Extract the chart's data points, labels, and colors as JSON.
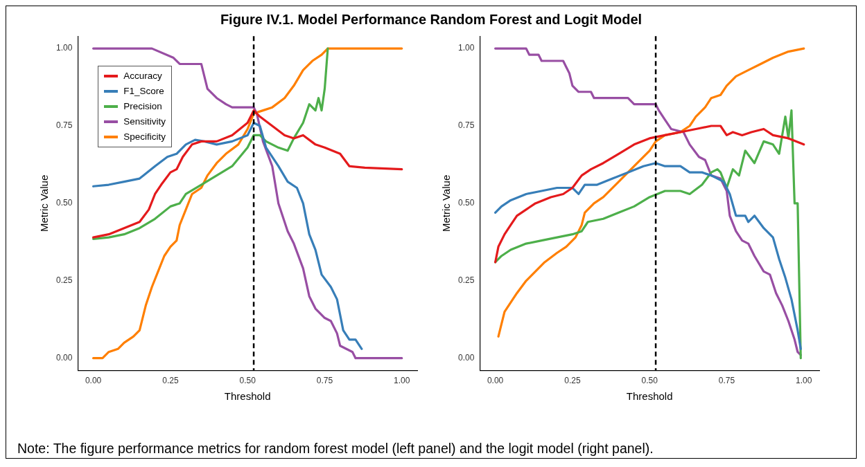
{
  "chart_data": [
    {
      "type": "line",
      "title": "Figure IV.1. Model Performance Random Forest and Logit Model",
      "xlabel": "Threshold",
      "ylabel": "Metric Value",
      "xlim": [
        -0.05,
        1.05
      ],
      "ylim": [
        -0.04,
        1.04
      ],
      "xticks": [
        {
          "value": 0,
          "label": "0.00"
        },
        {
          "value": 0.25,
          "label": "0.25"
        },
        {
          "value": 0.5,
          "label": "0.50"
        },
        {
          "value": 0.75,
          "label": "0.75"
        },
        {
          "value": 1,
          "label": "1.00"
        }
      ],
      "yticks": [
        {
          "value": 0,
          "label": "0.00"
        },
        {
          "value": 0.25,
          "label": "0.25"
        },
        {
          "value": 0.5,
          "label": "0.50"
        },
        {
          "value": 0.75,
          "label": "0.75"
        },
        {
          "value": 1,
          "label": "1.00"
        }
      ],
      "grid": false,
      "legend": "top left",
      "line_style": "solid",
      "marker": "none",
      "ref_lines": [
        {
          "axis": "x",
          "value": 0.52,
          "color": "#000000",
          "line_style": "dashed"
        }
      ],
      "series": [
        {
          "name": "Accuracy",
          "color": "#e41a1c",
          "x": [
            0,
            0.05,
            0.1,
            0.15,
            0.18,
            0.2,
            0.22,
            0.25,
            0.27,
            0.29,
            0.32,
            0.35,
            0.4,
            0.45,
            0.5,
            0.52,
            0.54,
            0.58,
            0.62,
            0.65,
            0.68,
            0.72,
            0.75,
            0.8,
            0.83,
            0.88,
            1
          ],
          "values": [
            0.39,
            0.4,
            0.42,
            0.44,
            0.48,
            0.53,
            0.56,
            0.6,
            0.61,
            0.65,
            0.69,
            0.7,
            0.7,
            0.72,
            0.76,
            0.8,
            0.78,
            0.75,
            0.72,
            0.71,
            0.72,
            0.69,
            0.68,
            0.66,
            0.62,
            0.615,
            0.61
          ]
        },
        {
          "name": "F1_Score",
          "color": "#377eb8",
          "x": [
            0,
            0.05,
            0.1,
            0.15,
            0.2,
            0.24,
            0.27,
            0.3,
            0.33,
            0.36,
            0.4,
            0.45,
            0.5,
            0.52,
            0.54,
            0.56,
            0.6,
            0.63,
            0.66,
            0.68,
            0.7,
            0.72,
            0.74,
            0.77,
            0.79,
            0.81,
            0.83,
            0.85,
            0.87
          ],
          "values": [
            0.555,
            0.56,
            0.57,
            0.58,
            0.62,
            0.65,
            0.66,
            0.69,
            0.705,
            0.7,
            0.69,
            0.7,
            0.72,
            0.76,
            0.75,
            0.68,
            0.62,
            0.57,
            0.55,
            0.5,
            0.4,
            0.35,
            0.27,
            0.23,
            0.19,
            0.09,
            0.06,
            0.06,
            0.03
          ]
        },
        {
          "name": "Precision",
          "color": "#4daf4a",
          "x": [
            0,
            0.05,
            0.1,
            0.15,
            0.2,
            0.25,
            0.28,
            0.3,
            0.35,
            0.4,
            0.45,
            0.5,
            0.52,
            0.54,
            0.56,
            0.6,
            0.63,
            0.65,
            0.68,
            0.7,
            0.72,
            0.73,
            0.74,
            0.75,
            0.76
          ],
          "values": [
            0.385,
            0.39,
            0.4,
            0.42,
            0.45,
            0.49,
            0.5,
            0.53,
            0.56,
            0.59,
            0.62,
            0.68,
            0.72,
            0.72,
            0.7,
            0.68,
            0.67,
            0.71,
            0.76,
            0.82,
            0.8,
            0.84,
            0.8,
            0.87,
            1
          ]
        },
        {
          "name": "Sensitivity",
          "color": "#984ea3",
          "x": [
            0,
            0.1,
            0.19,
            0.26,
            0.28,
            0.35,
            0.37,
            0.4,
            0.43,
            0.45,
            0.52,
            0.53,
            0.55,
            0.58,
            0.6,
            0.63,
            0.65,
            0.68,
            0.7,
            0.72,
            0.75,
            0.77,
            0.79,
            0.8,
            0.82,
            0.84,
            0.85,
            1
          ],
          "values": [
            1,
            1,
            1,
            0.97,
            0.95,
            0.95,
            0.87,
            0.84,
            0.82,
            0.81,
            0.81,
            0.79,
            0.7,
            0.62,
            0.5,
            0.41,
            0.37,
            0.29,
            0.2,
            0.16,
            0.13,
            0.12,
            0.08,
            0.04,
            0.03,
            0.02,
            0,
            0
          ]
        },
        {
          "name": "Specificity",
          "color": "#ff7f00",
          "x": [
            0,
            0.03,
            0.05,
            0.08,
            0.1,
            0.13,
            0.15,
            0.17,
            0.19,
            0.21,
            0.23,
            0.25,
            0.27,
            0.28,
            0.3,
            0.32,
            0.35,
            0.37,
            0.4,
            0.43,
            0.47,
            0.5,
            0.52,
            0.55,
            0.58,
            0.62,
            0.65,
            0.68,
            0.71,
            0.74,
            0.76,
            1
          ],
          "values": [
            0,
            0,
            0.02,
            0.03,
            0.05,
            0.07,
            0.09,
            0.17,
            0.23,
            0.28,
            0.33,
            0.36,
            0.38,
            0.43,
            0.48,
            0.53,
            0.55,
            0.59,
            0.63,
            0.66,
            0.69,
            0.74,
            0.79,
            0.8,
            0.81,
            0.84,
            0.88,
            0.93,
            0.96,
            0.98,
            1,
            1
          ]
        }
      ],
      "annotations": [
        "Note: The figure performance metrics for random forest model (left panel) and the logit model (right panel)."
      ]
    },
    {
      "type": "line",
      "xlabel": "Threshold",
      "ylabel": "Metric Value",
      "xlim": [
        -0.05,
        1.05
      ],
      "ylim": [
        -0.04,
        1.04
      ],
      "xticks": [
        {
          "value": 0,
          "label": "0.00"
        },
        {
          "value": 0.25,
          "label": "0.25"
        },
        {
          "value": 0.5,
          "label": "0.50"
        },
        {
          "value": 0.75,
          "label": "0.75"
        },
        {
          "value": 1,
          "label": "1.00"
        }
      ],
      "yticks": [
        {
          "value": 0,
          "label": "0.00"
        },
        {
          "value": 0.25,
          "label": "0.25"
        },
        {
          "value": 0.5,
          "label": "0.50"
        },
        {
          "value": 0.75,
          "label": "0.75"
        },
        {
          "value": 1,
          "label": "1.00"
        }
      ],
      "grid": false,
      "line_style": "solid",
      "marker": "none",
      "ref_lines": [
        {
          "axis": "x",
          "value": 0.52,
          "color": "#000000",
          "line_style": "dashed"
        }
      ],
      "series": [
        {
          "color": "#e41a1c",
          "x": [
            0,
            0.01,
            0.03,
            0.05,
            0.07,
            0.1,
            0.13,
            0.18,
            0.22,
            0.25,
            0.28,
            0.31,
            0.35,
            0.4,
            0.45,
            0.5,
            0.55,
            0.6,
            0.65,
            0.7,
            0.73,
            0.75,
            0.77,
            0.8,
            0.83,
            0.87,
            0.9,
            0.95,
            1
          ],
          "values": [
            0.31,
            0.36,
            0.4,
            0.43,
            0.46,
            0.48,
            0.5,
            0.52,
            0.53,
            0.55,
            0.59,
            0.61,
            0.63,
            0.66,
            0.69,
            0.71,
            0.72,
            0.73,
            0.74,
            0.75,
            0.75,
            0.72,
            0.73,
            0.72,
            0.73,
            0.74,
            0.72,
            0.71,
            0.69
          ]
        },
        {
          "color": "#377eb8",
          "x": [
            0,
            0.02,
            0.05,
            0.1,
            0.15,
            0.2,
            0.25,
            0.27,
            0.29,
            0.33,
            0.38,
            0.43,
            0.48,
            0.52,
            0.55,
            0.6,
            0.63,
            0.67,
            0.7,
            0.74,
            0.76,
            0.78,
            0.81,
            0.82,
            0.84,
            0.87,
            0.9,
            0.92,
            0.94,
            0.96,
            0.98,
            0.99
          ],
          "values": [
            0.47,
            0.49,
            0.51,
            0.53,
            0.54,
            0.55,
            0.55,
            0.53,
            0.56,
            0.56,
            0.58,
            0.6,
            0.62,
            0.63,
            0.62,
            0.62,
            0.6,
            0.6,
            0.59,
            0.57,
            0.53,
            0.46,
            0.46,
            0.44,
            0.46,
            0.42,
            0.39,
            0.32,
            0.26,
            0.19,
            0.09,
            0.03
          ]
        },
        {
          "color": "#4daf4a",
          "x": [
            0,
            0.02,
            0.05,
            0.1,
            0.15,
            0.2,
            0.25,
            0.28,
            0.3,
            0.35,
            0.4,
            0.45,
            0.5,
            0.55,
            0.6,
            0.63,
            0.67,
            0.7,
            0.72,
            0.73,
            0.75,
            0.77,
            0.79,
            0.81,
            0.84,
            0.87,
            0.9,
            0.92,
            0.94,
            0.95,
            0.96,
            0.97,
            0.98,
            0.99
          ],
          "values": [
            0.31,
            0.33,
            0.35,
            0.37,
            0.38,
            0.39,
            0.4,
            0.41,
            0.44,
            0.45,
            0.47,
            0.49,
            0.52,
            0.54,
            0.54,
            0.53,
            0.56,
            0.6,
            0.61,
            0.6,
            0.55,
            0.61,
            0.59,
            0.67,
            0.63,
            0.7,
            0.69,
            0.66,
            0.78,
            0.71,
            0.8,
            0.5,
            0.5,
            0
          ]
        },
        {
          "color": "#984ea3",
          "x": [
            0,
            0.1,
            0.11,
            0.14,
            0.15,
            0.22,
            0.23,
            0.24,
            0.25,
            0.27,
            0.31,
            0.32,
            0.43,
            0.45,
            0.52,
            0.53,
            0.55,
            0.57,
            0.61,
            0.63,
            0.66,
            0.68,
            0.7,
            0.73,
            0.75,
            0.76,
            0.78,
            0.8,
            0.82,
            0.84,
            0.87,
            0.89,
            0.91,
            0.93,
            0.95,
            0.97,
            0.98,
            0.99
          ],
          "values": [
            1,
            1,
            0.98,
            0.98,
            0.96,
            0.96,
            0.94,
            0.92,
            0.88,
            0.86,
            0.86,
            0.84,
            0.84,
            0.82,
            0.82,
            0.8,
            0.77,
            0.74,
            0.73,
            0.69,
            0.65,
            0.64,
            0.59,
            0.58,
            0.54,
            0.46,
            0.41,
            0.38,
            0.37,
            0.33,
            0.28,
            0.27,
            0.21,
            0.17,
            0.12,
            0.06,
            0.02,
            0.01
          ]
        },
        {
          "color": "#ff7f00",
          "x": [
            0.01,
            0.02,
            0.03,
            0.05,
            0.07,
            0.1,
            0.13,
            0.16,
            0.2,
            0.23,
            0.26,
            0.28,
            0.29,
            0.32,
            0.35,
            0.4,
            0.45,
            0.5,
            0.52,
            0.55,
            0.6,
            0.63,
            0.65,
            0.68,
            0.7,
            0.73,
            0.75,
            0.78,
            0.82,
            0.86,
            0.9,
            0.95,
            1
          ],
          "values": [
            0.07,
            0.11,
            0.15,
            0.18,
            0.21,
            0.25,
            0.28,
            0.31,
            0.34,
            0.36,
            0.39,
            0.43,
            0.47,
            0.5,
            0.52,
            0.57,
            0.62,
            0.67,
            0.7,
            0.72,
            0.73,
            0.75,
            0.78,
            0.81,
            0.84,
            0.85,
            0.88,
            0.91,
            0.93,
            0.95,
            0.97,
            0.99,
            1
          ]
        }
      ]
    }
  ]
}
